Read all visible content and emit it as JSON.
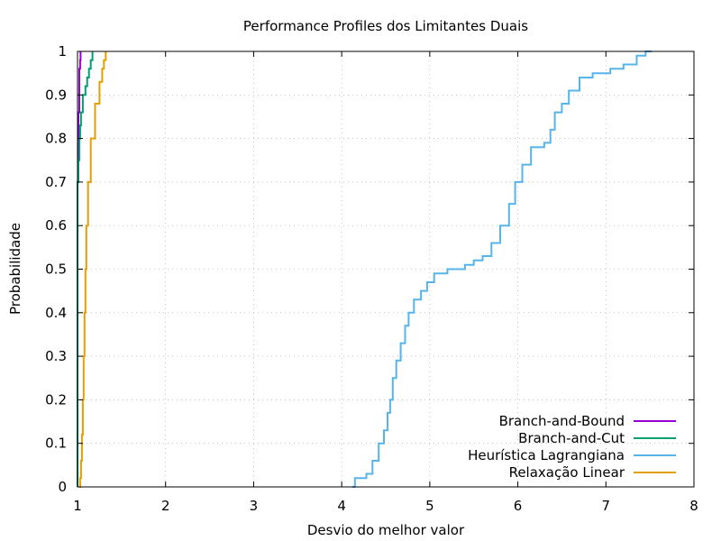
{
  "chart_data": {
    "type": "line",
    "title": "Performance Profiles dos Limitantes Duais",
    "xlabel": "Desvio do melhor valor",
    "ylabel": "Probabilidade",
    "xlim": [
      1,
      8
    ],
    "ylim": [
      0,
      1
    ],
    "xticks": [
      "1",
      "2",
      "3",
      "4",
      "5",
      "6",
      "7",
      "8"
    ],
    "yticks": [
      "0",
      "0.1",
      "0.2",
      "0.3",
      "0.4",
      "0.5",
      "0.6",
      "0.7",
      "0.8",
      "0.9",
      "1"
    ],
    "grid": true,
    "legend_position": "bottom-right",
    "series": [
      {
        "name": "Branch-and-Bound",
        "color": "#9400d3",
        "points": [
          [
            1.0,
            0.0
          ],
          [
            1.0,
            0.7
          ],
          [
            1.01,
            0.74
          ],
          [
            1.01,
            0.86
          ],
          [
            1.02,
            0.9
          ],
          [
            1.02,
            0.96
          ],
          [
            1.03,
            0.98
          ],
          [
            1.035,
            1.0
          ]
        ]
      },
      {
        "name": "Branch-and-Cut",
        "color": "#009e73",
        "points": [
          [
            0.99,
            0.0
          ],
          [
            0.99,
            0.55
          ],
          [
            1.0,
            0.6
          ],
          [
            1.0,
            0.7
          ],
          [
            1.01,
            0.75
          ],
          [
            1.02,
            0.8
          ],
          [
            1.03,
            0.83
          ],
          [
            1.04,
            0.86
          ],
          [
            1.06,
            0.9
          ],
          [
            1.09,
            0.92
          ],
          [
            1.11,
            0.94
          ],
          [
            1.13,
            0.96
          ],
          [
            1.15,
            0.98
          ],
          [
            1.17,
            1.0
          ]
        ]
      },
      {
        "name": "Heurística Lagrangiana",
        "color": "#56b4e9",
        "points": [
          [
            4.12,
            0.0
          ],
          [
            4.15,
            0.02
          ],
          [
            4.28,
            0.03
          ],
          [
            4.35,
            0.06
          ],
          [
            4.42,
            0.1
          ],
          [
            4.48,
            0.13
          ],
          [
            4.52,
            0.17
          ],
          [
            4.55,
            0.2
          ],
          [
            4.58,
            0.25
          ],
          [
            4.62,
            0.29
          ],
          [
            4.67,
            0.33
          ],
          [
            4.72,
            0.37
          ],
          [
            4.76,
            0.4
          ],
          [
            4.82,
            0.43
          ],
          [
            4.9,
            0.45
          ],
          [
            4.97,
            0.47
          ],
          [
            5.05,
            0.49
          ],
          [
            5.2,
            0.5
          ],
          [
            5.4,
            0.51
          ],
          [
            5.5,
            0.52
          ],
          [
            5.6,
            0.53
          ],
          [
            5.7,
            0.56
          ],
          [
            5.8,
            0.6
          ],
          [
            5.9,
            0.65
          ],
          [
            5.97,
            0.7
          ],
          [
            6.05,
            0.74
          ],
          [
            6.15,
            0.78
          ],
          [
            6.3,
            0.79
          ],
          [
            6.37,
            0.82
          ],
          [
            6.42,
            0.86
          ],
          [
            6.5,
            0.88
          ],
          [
            6.58,
            0.91
          ],
          [
            6.7,
            0.94
          ],
          [
            6.85,
            0.95
          ],
          [
            7.05,
            0.96
          ],
          [
            7.2,
            0.97
          ],
          [
            7.35,
            0.99
          ],
          [
            7.45,
            1.0
          ],
          [
            7.52,
            1.0
          ]
        ]
      },
      {
        "name": "Relaxação Linear",
        "color": "#e69f00",
        "points": [
          [
            1.02,
            0.0
          ],
          [
            1.03,
            0.02
          ],
          [
            1.04,
            0.06
          ],
          [
            1.05,
            0.12
          ],
          [
            1.06,
            0.2
          ],
          [
            1.07,
            0.3
          ],
          [
            1.08,
            0.4
          ],
          [
            1.09,
            0.5
          ],
          [
            1.1,
            0.6
          ],
          [
            1.12,
            0.7
          ],
          [
            1.15,
            0.8
          ],
          [
            1.2,
            0.88
          ],
          [
            1.25,
            0.93
          ],
          [
            1.28,
            0.96
          ],
          [
            1.3,
            0.98
          ],
          [
            1.32,
            1.0
          ]
        ]
      }
    ]
  }
}
